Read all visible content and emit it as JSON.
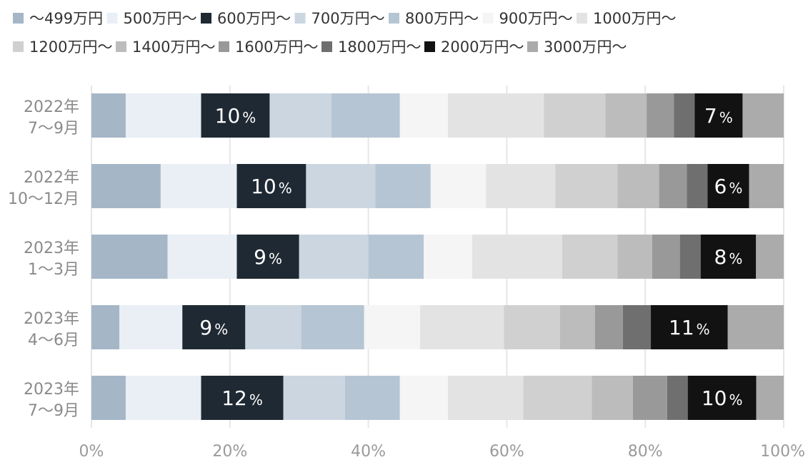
{
  "chart_data": {
    "type": "bar",
    "orientation": "horizontal",
    "stacked": true,
    "categories": [
      [
        "2022年",
        "7〜9月"
      ],
      [
        "2022年",
        "10〜12月"
      ],
      [
        "2023年",
        "1〜3月"
      ],
      [
        "2023年",
        "4〜6月"
      ],
      [
        "2023年",
        "7〜9月"
      ]
    ],
    "xlim": [
      0,
      100
    ],
    "x_ticks": [
      "0%",
      "20%",
      "40%",
      "60%",
      "80%",
      "100%"
    ],
    "grid": true,
    "legend_position": "top",
    "series": [
      {
        "name": "〜499万円",
        "color": "#a5b6c7",
        "values": [
          5,
          10,
          11,
          4,
          5
        ]
      },
      {
        "name": "500万円〜",
        "color": "#e9eff4",
        "values": [
          11,
          11,
          10,
          9,
          11
        ]
      },
      {
        "name": "600万円〜",
        "color": "#1f2933",
        "values": [
          10,
          10,
          9,
          9,
          12
        ],
        "labeled": true
      },
      {
        "name": "700万円〜",
        "color": "#cbd6e1",
        "values": [
          9,
          10,
          10,
          8,
          9
        ]
      },
      {
        "name": "800万円〜",
        "color": "#b6c5d3",
        "values": [
          10,
          8,
          8,
          9,
          8
        ]
      },
      {
        "name": "900万円〜",
        "color": "#f5f5f5",
        "values": [
          7,
          8,
          7,
          8,
          7
        ]
      },
      {
        "name": "1000万円〜",
        "color": "#e3e3e3",
        "values": [
          14,
          10,
          13,
          12,
          11
        ]
      },
      {
        "name": "1200万円〜",
        "color": "#d0d0d0",
        "values": [
          9,
          9,
          8,
          8,
          10
        ]
      },
      {
        "name": "1400万円〜",
        "color": "#bcbcbc",
        "values": [
          6,
          6,
          5,
          5,
          6
        ]
      },
      {
        "name": "1600万円〜",
        "color": "#999999",
        "values": [
          4,
          4,
          4,
          4,
          5
        ]
      },
      {
        "name": "1800万円〜",
        "color": "#6f6f6f",
        "values": [
          3,
          3,
          3,
          4,
          3
        ]
      },
      {
        "name": "2000万円〜",
        "color": "#121212",
        "values": [
          7,
          6,
          8,
          11,
          10
        ],
        "labeled": true
      },
      {
        "name": "3000万円〜",
        "color": "#ababab",
        "values": [
          6,
          5,
          4,
          8,
          4
        ]
      }
    ]
  }
}
